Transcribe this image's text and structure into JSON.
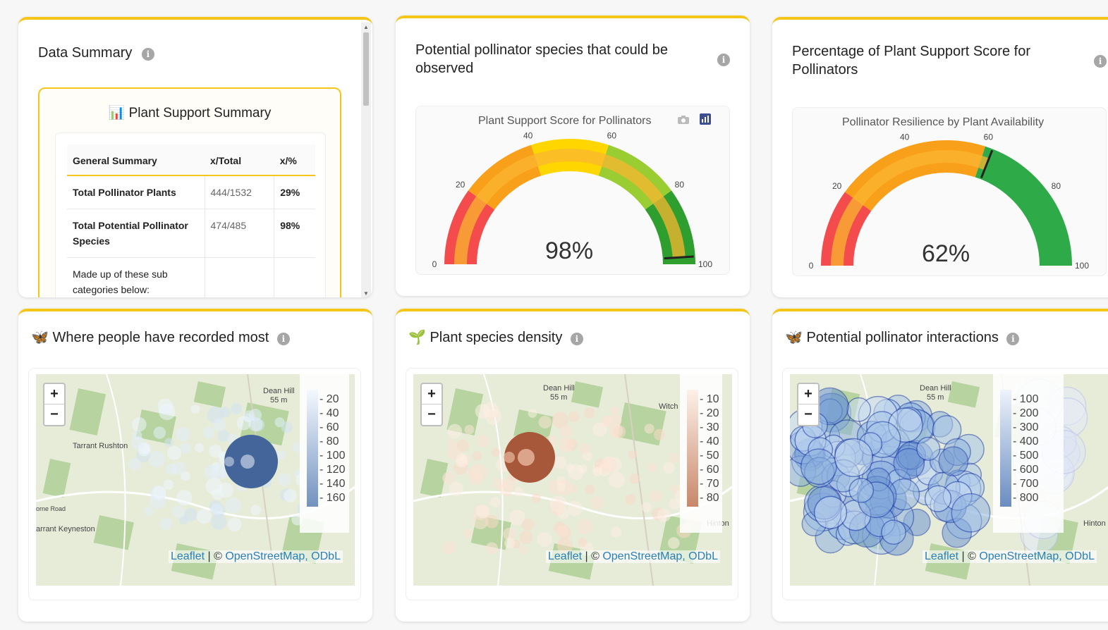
{
  "data_summary": {
    "title": "Data Summary",
    "box_title": "Plant Support Summary",
    "headers": [
      "General Summary",
      "x/Total",
      "x/%"
    ],
    "rows": [
      {
        "label": "Total Pollinator Plants",
        "total": "444/1532",
        "pct": "29%"
      },
      {
        "label": "Total Potential Pollinator Species",
        "total": "474/485",
        "pct": "98%"
      }
    ],
    "sub_note": "Made up of these sub categories below:"
  },
  "gauge1": {
    "card_title": "Potential pollinator species that could be observed",
    "chart_title": "Plant Support Score for Pollinators",
    "value_text": "98%",
    "ticks": [
      "0",
      "20",
      "40",
      "60",
      "80",
      "100"
    ]
  },
  "gauge2": {
    "card_title": "Percentage of Plant Support Score for Pollinators",
    "chart_title": "Pollinator Resilience by Plant Availability",
    "value_text": "62%",
    "ticks": [
      "0",
      "20",
      "40",
      "60",
      "80",
      "100"
    ]
  },
  "chart_data": [
    {
      "type": "gauge",
      "title": "Plant Support Score for Pollinators",
      "value": 98,
      "range": [
        0,
        100
      ],
      "bands": [
        {
          "from": 0,
          "to": 20,
          "color": "#f44c4c"
        },
        {
          "from": 20,
          "to": 40,
          "color": "#f9a01b"
        },
        {
          "from": 40,
          "to": 60,
          "color": "#ffd600"
        },
        {
          "from": 60,
          "to": 80,
          "color": "#9acd32"
        },
        {
          "from": 80,
          "to": 100,
          "color": "#2e9e2e"
        }
      ]
    },
    {
      "type": "gauge",
      "title": "Pollinator Resilience by Plant Availability",
      "value": 62,
      "range": [
        0,
        100
      ],
      "bands": [
        {
          "from": 0,
          "to": 20,
          "color": "#f44c4c"
        },
        {
          "from": 20,
          "to": 60,
          "color": "#f9a01b"
        },
        {
          "from": 60,
          "to": 100,
          "color": "#2eaa48"
        }
      ]
    }
  ],
  "map1": {
    "title": "Where people have recorded most",
    "legend": [
      "20",
      "40",
      "60",
      "80",
      "100",
      "120",
      "140",
      "160"
    ],
    "places": [
      "Dean Hill",
      "55 m",
      "Tarrant Rushton",
      "orne Road",
      "arrant Keyneston"
    ]
  },
  "map2": {
    "title": "Plant species density",
    "legend": [
      "10",
      "20",
      "30",
      "40",
      "50",
      "60",
      "70",
      "80"
    ],
    "places": [
      "Dean Hill",
      "55 m",
      "Witch",
      "Hinton"
    ]
  },
  "map3": {
    "title": "Potential pollinator interactions",
    "legend": [
      "100",
      "200",
      "300",
      "400",
      "500",
      "600",
      "700",
      "800"
    ],
    "places": [
      "Dean Hill",
      "55 m",
      "Hinton"
    ]
  },
  "map_common": {
    "zoom_in": "+",
    "zoom_out": "−",
    "leaflet": "Leaflet",
    "separator": " | © ",
    "osm": "OpenStreetMap, ODbL"
  },
  "icons": {
    "info": "i",
    "chart_emoji": "📊",
    "butterfly": "🦋",
    "sprout": "🌱"
  }
}
